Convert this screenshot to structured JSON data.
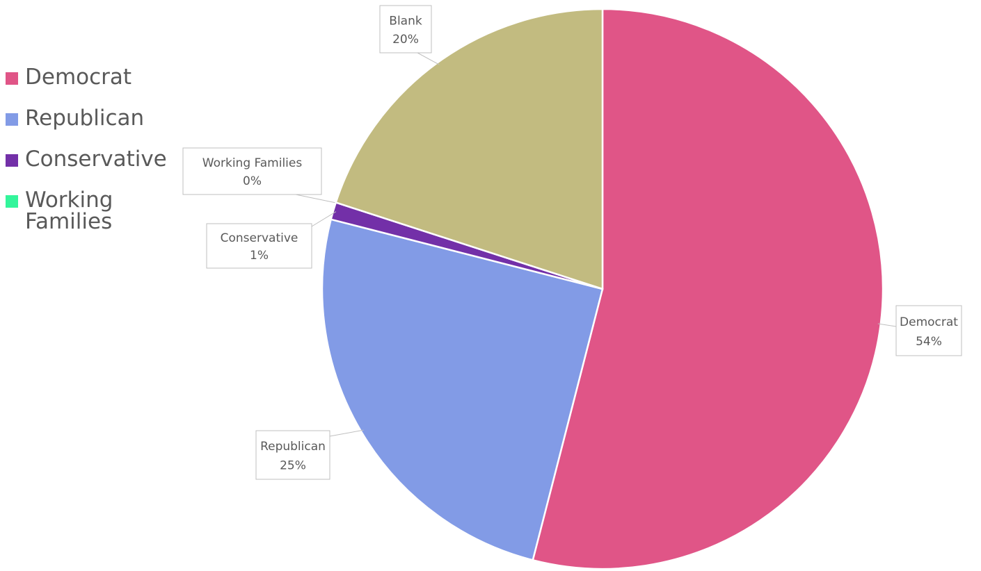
{
  "chart_data": {
    "type": "pie",
    "categories": [
      "Democrat",
      "Republican",
      "Conservative",
      "Working Families",
      "Blank"
    ],
    "values": [
      54,
      25,
      1,
      0,
      20
    ],
    "value_labels": [
      "54%",
      "25%",
      "1%",
      "0%",
      "20%"
    ],
    "colors": [
      "#e05587",
      "#829be6",
      "#7330a8",
      "#33f59b",
      "#c2bb80"
    ],
    "legend": [
      "Democrat",
      "Republican",
      "Conservative",
      "Working Families"
    ]
  }
}
